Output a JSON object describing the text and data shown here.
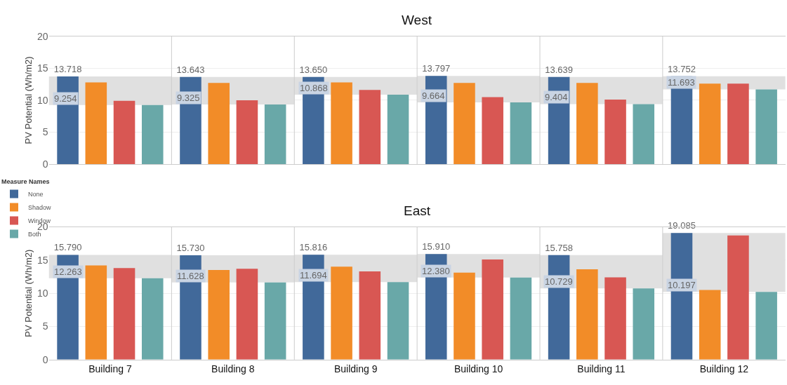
{
  "chart_data": [
    {
      "type": "bar",
      "title": "West",
      "ylabel": "PV Potential (Wh/m2)",
      "categories": [
        null,
        null,
        null,
        null,
        null,
        null
      ],
      "ylim": [
        0,
        20
      ],
      "yticks": [
        0,
        5,
        10,
        15,
        20
      ],
      "grid": "y",
      "tick_labels": "y",
      "legend": "bottom left",
      "legend_title": "Measure Names",
      "series": [
        {
          "color": "#e0e0e0",
          "base": [
            9.254,
            9.325,
            10.868,
            9.664,
            9.404,
            11.693
          ],
          "values": [
            4.464,
            4.318,
            2.782,
            4.133,
            4.235,
            2.059
          ]
        },
        {
          "name": "None",
          "color": "#41699a",
          "values": [
            13.718,
            13.643,
            13.65,
            13.797,
            13.639,
            13.752
          ],
          "value_labels": [
            "13.718",
            "13.643",
            "13.650",
            "13.797",
            "13.639",
            "13.752"
          ]
        },
        {
          "name": "Shadow",
          "color": "#f28c28",
          "values": [
            12.8,
            12.7,
            12.8,
            12.7,
            12.7,
            12.6
          ]
        },
        {
          "name": "Window",
          "color": "#d85753",
          "values": [
            9.9,
            10.0,
            11.6,
            10.5,
            10.1,
            12.6
          ]
        },
        {
          "name": "Both",
          "color": "#69a8a8",
          "values": [
            9.254,
            9.325,
            10.868,
            9.664,
            9.404,
            11.693
          ]
        }
      ],
      "annotations": [
        "9.254",
        "9.325",
        "10.868",
        "9.664",
        "9.404",
        "11.693"
      ]
    },
    {
      "type": "bar",
      "title": "East",
      "ylabel": "PV Potential (Wh/m2)",
      "categories": [
        "Building 7",
        "Building 8",
        "Building 9",
        "Building 10",
        "Building 11",
        "Building 12"
      ],
      "ylim": [
        0,
        20
      ],
      "yticks": [
        0,
        5,
        10,
        15,
        20
      ],
      "grid": "y",
      "series": [
        {
          "color": "#e0e0e0",
          "base": [
            12.263,
            11.628,
            11.694,
            12.38,
            10.729,
            10.197
          ],
          "values": [
            3.527,
            4.102,
            4.122,
            3.53,
            5.029,
            8.888
          ]
        },
        {
          "color": "#41699a",
          "values": [
            15.79,
            15.73,
            15.816,
            15.91,
            15.758,
            19.085
          ],
          "value_labels": [
            "15.790",
            "15.730",
            "15.816",
            "15.910",
            "15.758",
            "19.085"
          ]
        },
        {
          "color": "#f28c28",
          "values": [
            14.2,
            13.5,
            14.0,
            13.1,
            13.6,
            10.5
          ]
        },
        {
          "color": "#d85753",
          "values": [
            13.8,
            13.7,
            13.3,
            15.1,
            12.4,
            18.7
          ]
        },
        {
          "color": "#69a8a8",
          "values": [
            12.263,
            11.628,
            11.694,
            12.38,
            10.729,
            10.197
          ]
        }
      ],
      "annotations": [
        "12.263",
        "11.628",
        "11.694",
        "12.380",
        "10.729",
        "10.197"
      ]
    }
  ]
}
